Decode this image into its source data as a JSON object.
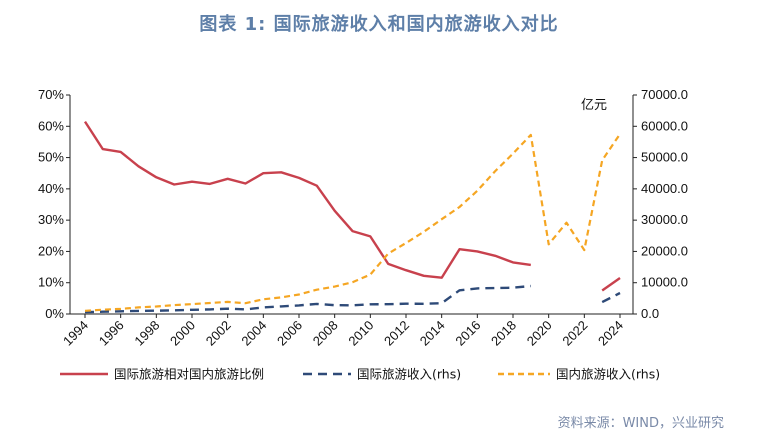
{
  "title": "图表 1:  国际旅游收入和国内旅游收入对比",
  "source": "资料来源：WIND，兴业研究",
  "colors": {
    "ratio": "#c8414d",
    "intl": "#2e4a78",
    "domestic": "#f5a623",
    "title": "#5e7fa8"
  },
  "chart_data": {
    "type": "line",
    "x_range": [
      1994,
      2024
    ],
    "x_ticks": [
      "1994",
      "1996",
      "1998",
      "2000",
      "2002",
      "2004",
      "2006",
      "2008",
      "2010",
      "2012",
      "2014",
      "2016",
      "2018",
      "2020",
      "2022",
      "2024"
    ],
    "left_axis": {
      "range": [
        0,
        0.7
      ],
      "tick_labels": [
        "0%",
        "10%",
        "20%",
        "30%",
        "40%",
        "50%",
        "60%",
        "70%"
      ],
      "tick_values": [
        0,
        0.1,
        0.2,
        0.3,
        0.4,
        0.5,
        0.6,
        0.7
      ]
    },
    "right_axis": {
      "range": [
        0,
        70000
      ],
      "unit": "亿元",
      "tick_labels": [
        "0.0",
        "10000.0",
        "20000.0",
        "30000.0",
        "40000.0",
        "50000.0",
        "60000.0",
        "70000.0"
      ],
      "tick_values": [
        0,
        10000,
        20000,
        30000,
        40000,
        50000,
        60000,
        70000
      ]
    },
    "series": [
      {
        "name": "国际旅游相对国内旅游比例",
        "axis": "left",
        "style": "solid",
        "x": [
          1994,
          1995,
          1996,
          1997,
          1998,
          1999,
          2000,
          2001,
          2002,
          2003,
          2004,
          2005,
          2006,
          2007,
          2008,
          2009,
          2010,
          2011,
          2012,
          2013,
          2014,
          2015,
          2016,
          2017,
          2018,
          2019,
          2023,
          2024
        ],
        "y": [
          0.615,
          0.527,
          0.518,
          0.472,
          0.437,
          0.414,
          0.423,
          0.416,
          0.432,
          0.417,
          0.45,
          0.453,
          0.435,
          0.41,
          0.33,
          0.265,
          0.248,
          0.16,
          0.14,
          0.122,
          0.116,
          0.207,
          0.2,
          0.186,
          0.165,
          0.157,
          0.075,
          0.115
        ]
      },
      {
        "name": "国际旅游收入(rhs)",
        "axis": "right",
        "style": "dashed",
        "x": [
          1994,
          1995,
          1996,
          1997,
          1998,
          1999,
          2000,
          2001,
          2002,
          2003,
          2004,
          2005,
          2006,
          2007,
          2008,
          2009,
          2010,
          2011,
          2012,
          2013,
          2014,
          2015,
          2016,
          2017,
          2018,
          2019,
          2023,
          2024
        ],
        "y": [
          620,
          720,
          850,
          1000,
          1050,
          1170,
          1340,
          1470,
          1680,
          1460,
          2120,
          2420,
          2750,
          3230,
          2810,
          2770,
          3090,
          3140,
          3300,
          3260,
          3460,
          7590,
          8170,
          8300,
          8420,
          8960,
          3800,
          6700
        ]
      },
      {
        "name": "国内旅游收入(rhs)",
        "axis": "right",
        "style": "dashed",
        "x": [
          1994,
          1995,
          1996,
          1997,
          1998,
          1999,
          2000,
          2001,
          2002,
          2003,
          2004,
          2005,
          2006,
          2007,
          2008,
          2009,
          2010,
          2011,
          2012,
          2013,
          2014,
          2015,
          2016,
          2017,
          2018,
          2019,
          2020,
          2021,
          2022,
          2023,
          2024
        ],
        "y": [
          1020,
          1380,
          1640,
          2110,
          2390,
          2830,
          3180,
          3520,
          3880,
          3440,
          4710,
          5290,
          6230,
          7770,
          8750,
          10180,
          12580,
          19310,
          22710,
          26280,
          30310,
          34200,
          39390,
          45660,
          51280,
          57250,
          22290,
          29190,
          20440,
          49130,
          57540
        ]
      }
    ]
  }
}
